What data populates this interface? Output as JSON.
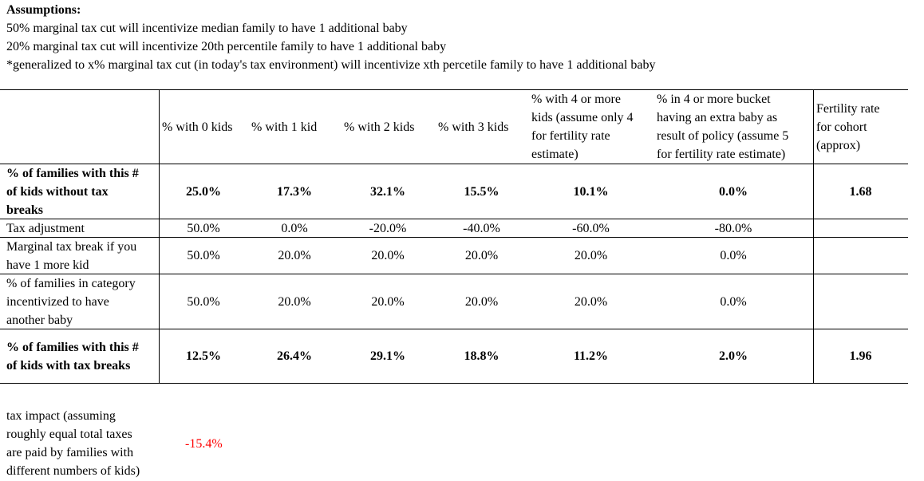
{
  "assumptions": {
    "title": "Assumptions:",
    "lines": [
      "50% marginal tax cut will incentivize median family to have 1 additional baby",
      "20% marginal tax cut will incentivize 20th percentile family to have 1 additional baby",
      "*generalized to x% marginal tax cut (in today's tax environment) will incentivize xth percetile family to have 1 additional baby"
    ]
  },
  "table": {
    "headers": [
      "",
      "% with 0 kids",
      "% with 1 kid",
      "% with 2 kids",
      "% with 3 kids",
      "% with 4 or more\nkids (assume only 4\nfor fertility rate\nestimate)",
      "% in 4 or more bucket\nhaving an extra baby as\nresult of policy (assume 5\nfor fertility rate estimate)",
      "Fertility rate\nfor cohort\n(approx)"
    ],
    "rows": [
      {
        "label": "% of families with this #\nof kids without tax\nbreaks",
        "values": [
          "25.0%",
          "17.3%",
          "32.1%",
          "15.5%",
          "10.1%",
          "0.0%",
          "1.68"
        ]
      },
      {
        "label": "Tax adjustment",
        "values": [
          "50.0%",
          "0.0%",
          "-20.0%",
          "-40.0%",
          "-60.0%",
          "-80.0%",
          ""
        ]
      },
      {
        "label": "Marginal tax break if you\nhave 1 more kid",
        "values": [
          "50.0%",
          "20.0%",
          "20.0%",
          "20.0%",
          "20.0%",
          "0.0%",
          ""
        ]
      },
      {
        "label": "% of families in category\nincentivized to have\nanother baby",
        "values": [
          "50.0%",
          "20.0%",
          "20.0%",
          "20.0%",
          "20.0%",
          "0.0%",
          ""
        ]
      },
      {
        "label": "% of families with this #\nof kids with tax breaks",
        "values": [
          "12.5%",
          "26.4%",
          "29.1%",
          "18.8%",
          "11.2%",
          "2.0%",
          "1.96"
        ]
      }
    ]
  },
  "tax_impact": {
    "label": "tax impact (assuming\nroughly equal total taxes\nare paid by families with\ndifferent numbers of kids)",
    "value": "-15.4%",
    "value_color": "#ff0000"
  }
}
